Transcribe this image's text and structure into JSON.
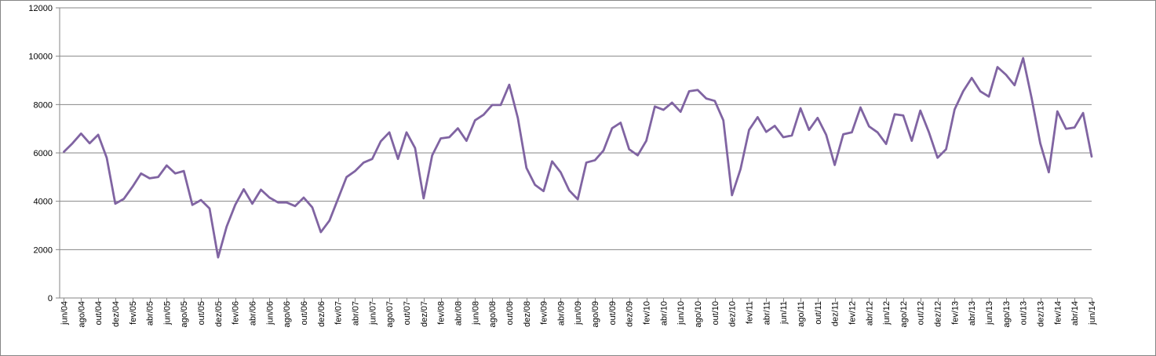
{
  "chart_data": {
    "type": "line",
    "title": "",
    "xlabel": "",
    "ylabel": "",
    "ylim": [
      0,
      12000
    ],
    "y_ticks": [
      "0",
      "2000",
      "4000",
      "6000",
      "8000",
      "10000",
      "12000"
    ],
    "grid": true,
    "legend": "none",
    "colors": {
      "line": "#8064a2",
      "grid": "#868686",
      "axis": "#868686"
    },
    "x": [
      "jun/04",
      "jul/04",
      "ago/04",
      "set/04",
      "out/04",
      "nov/04",
      "dez/04",
      "jan/05",
      "fev/05",
      "mar/05",
      "abr/05",
      "mai/05",
      "jun/05",
      "jul/05",
      "ago/05",
      "set/05",
      "out/05",
      "nov/05",
      "dez/05",
      "jan/06",
      "fev/06",
      "mar/06",
      "abr/06",
      "mai/06",
      "jun/06",
      "jul/06",
      "ago/06",
      "set/06",
      "out/06",
      "nov/06",
      "dez/06",
      "jan/07",
      "fev/07",
      "mar/07",
      "abr/07",
      "mai/07",
      "jun/07",
      "jul/07",
      "ago/07",
      "set/07",
      "out/07",
      "nov/07",
      "dez/07",
      "jan/08",
      "fev/08",
      "mar/08",
      "abr/08",
      "mai/08",
      "jun/08",
      "jul/08",
      "ago/08",
      "set/08",
      "out/08",
      "nov/08",
      "dez/08",
      "jan/09",
      "fev/09",
      "mar/09",
      "abr/09",
      "mai/09",
      "jun/09",
      "jul/09",
      "ago/09",
      "set/09",
      "out/09",
      "nov/09",
      "dez/09",
      "jan/10",
      "fev/10",
      "mar/10",
      "abr/10",
      "mai/10",
      "jun/10",
      "jul/10",
      "ago/10",
      "set/10",
      "out/10",
      "nov/10",
      "dez/10",
      "jan/11",
      "fev/11",
      "mar/11",
      "abr/11",
      "mai/11",
      "jun/11",
      "jul/11",
      "ago/11",
      "set/11",
      "out/11",
      "nov/11",
      "dez/11",
      "jan/12",
      "fev/12",
      "mar/12",
      "abr/12",
      "mai/12",
      "jun/12",
      "jul/12",
      "ago/12",
      "set/12",
      "out/12",
      "nov/12",
      "dez/12",
      "jan/13",
      "fev/13",
      "mar/13",
      "abr/13",
      "mai/13",
      "jun/13",
      "jul/13",
      "ago/13",
      "set/13",
      "out/13",
      "nov/13",
      "dez/13",
      "jan/14",
      "fev/14",
      "mar/14",
      "abr/14",
      "mai/14",
      "jun/14"
    ],
    "x_tick_labels": [
      "jun/04",
      "ago/04",
      "out/04",
      "dez/04",
      "fev/05",
      "abr/05",
      "jun/05",
      "ago/05",
      "out/05",
      "dez/05",
      "fev/06",
      "abr/06",
      "jun/06",
      "ago/06",
      "out/06",
      "dez/06",
      "fev/07",
      "abr/07",
      "jun/07",
      "ago/07",
      "out/07",
      "dez/07",
      "fev/08",
      "abr/08",
      "jun/08",
      "ago/08",
      "out/08",
      "dez/08",
      "fev/09",
      "abr/09",
      "jun/09",
      "ago/09",
      "out/09",
      "dez/09",
      "fev/10",
      "abr/10",
      "jun/10",
      "ago/10",
      "out/10",
      "dez/10",
      "fev/11",
      "abr/11",
      "jun/11",
      "ago/11",
      "out/11",
      "dez/11",
      "fev/12",
      "abr/12",
      "jun/12",
      "ago/12",
      "out/12",
      "dez/12",
      "fev/13",
      "abr/13",
      "jun/13",
      "ago/13",
      "out/13",
      "dez/13",
      "fev/14",
      "abr/14",
      "jun/14"
    ],
    "series": [
      {
        "values": [
          6050,
          6400,
          6800,
          6400,
          6750,
          5800,
          3900,
          4100,
          4600,
          5150,
          4950,
          5000,
          5480,
          5150,
          5250,
          3850,
          4050,
          3700,
          1680,
          2950,
          3850,
          4500,
          3900,
          4480,
          4150,
          3950,
          3950,
          3800,
          4150,
          3750,
          2720,
          3200,
          4100,
          5000,
          5250,
          5600,
          5750,
          6480,
          6850,
          5750,
          6850,
          6200,
          4120,
          5900,
          6600,
          6650,
          7020,
          6500,
          7350,
          7580,
          7980,
          7980,
          8820,
          7450,
          5380,
          4680,
          4420,
          5650,
          5200,
          4450,
          4080,
          5600,
          5700,
          6100,
          7020,
          7250,
          6150,
          5900,
          6500,
          7920,
          7780,
          8080,
          7700,
          8550,
          8600,
          8250,
          8150,
          7350,
          4250,
          5330,
          6950,
          7480,
          6870,
          7120,
          6650,
          6720,
          7850,
          6950,
          7450,
          6750,
          5500,
          6770,
          6850,
          7880,
          7100,
          6850,
          6370,
          7600,
          7550,
          6500,
          7750,
          6850,
          5800,
          6150,
          7800,
          8550,
          9100,
          8550,
          8330,
          9550,
          9230,
          8800,
          9920,
          8250,
          6400,
          5200,
          7720,
          7000,
          7050,
          7650,
          5850
        ]
      }
    ]
  }
}
